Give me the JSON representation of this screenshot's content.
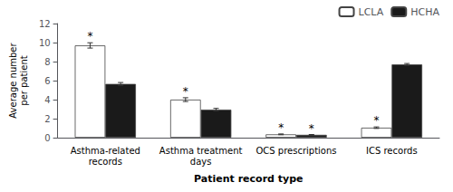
{
  "chart_data": {
    "type": "bar",
    "xlabel": "Patient record type",
    "ylabel": "Average number\nper patient",
    "categories": [
      "Asthma-related\nrecords",
      "Asthma treatment\ndays",
      "OCS prescriptions",
      "ICS records"
    ],
    "series": [
      {
        "name": "LCLA",
        "color": "#ffffff",
        "values": [
          9.7,
          4.0,
          0.35,
          1.05
        ],
        "errors": [
          0.28,
          0.2,
          0.04,
          0.08
        ],
        "annotations": [
          "*",
          "*",
          "*",
          "*"
        ]
      },
      {
        "name": "HCHA",
        "color": "#1a1a1a",
        "values": [
          5.65,
          2.95,
          0.3,
          7.7
        ],
        "errors": [
          0.15,
          0.13,
          0.03,
          0.1
        ],
        "annotations": [
          null,
          null,
          "*",
          null
        ]
      }
    ],
    "ylim": [
      0,
      12
    ],
    "yticks": [
      0,
      2,
      4,
      6,
      8,
      10,
      12
    ],
    "grid": false,
    "legend": "upper right"
  }
}
